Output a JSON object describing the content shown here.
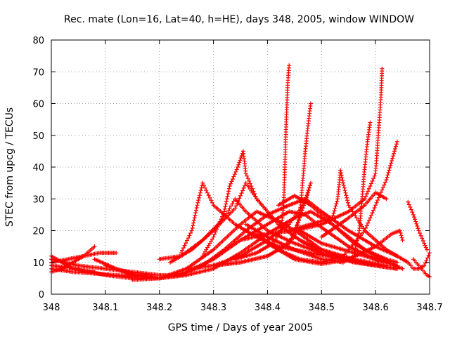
{
  "chart_data": {
    "type": "scatter",
    "title": "Rec. mate (Lon=16, Lat=40, h=HE), days 348, 2005, window WINDOW",
    "xlabel": "GPS time / Days of year 2005",
    "ylabel": "STEC from upcg / TECUs",
    "xlim": [
      348,
      348.7
    ],
    "ylim": [
      0,
      80
    ],
    "x_ticks": [
      "348",
      "348.1",
      "348.2",
      "348.3",
      "348.4",
      "348.5",
      "348.6",
      "348.7"
    ],
    "y_ticks": [
      "0",
      "10",
      "20",
      "30",
      "40",
      "50",
      "60",
      "70",
      "80"
    ],
    "x_tick_values": [
      348,
      348.1,
      348.2,
      348.3,
      348.4,
      348.5,
      348.6,
      348.7
    ],
    "y_tick_values": [
      0,
      10,
      20,
      30,
      40,
      50,
      60,
      70,
      80
    ],
    "grid": true,
    "marker": "+",
    "marker_color": "#ff0000",
    "series": [
      {
        "points": [
          [
            348.0,
            12
          ],
          [
            348.02,
            10
          ],
          [
            348.04,
            8
          ],
          [
            348.06,
            7
          ],
          [
            348.08,
            7
          ]
        ]
      },
      {
        "points": [
          [
            348.0,
            7
          ],
          [
            348.02,
            8
          ],
          [
            348.04,
            10
          ],
          [
            348.06,
            12
          ],
          [
            348.08,
            15
          ]
        ]
      },
      {
        "points": [
          [
            348.0,
            10
          ],
          [
            348.03,
            11
          ],
          [
            348.06,
            12
          ],
          [
            348.09,
            13
          ],
          [
            348.12,
            13
          ]
        ]
      },
      {
        "points": [
          [
            348.0,
            8
          ],
          [
            348.04,
            7
          ],
          [
            348.08,
            6.5
          ],
          [
            348.12,
            6
          ],
          [
            348.16,
            5.5
          ]
        ]
      },
      {
        "points": [
          [
            348.0,
            11
          ],
          [
            348.05,
            9
          ],
          [
            348.1,
            8
          ],
          [
            348.15,
            7
          ],
          [
            348.2,
            6
          ],
          [
            348.25,
            6
          ]
        ]
      },
      {
        "points": [
          [
            348.0,
            9
          ],
          [
            348.05,
            8
          ],
          [
            348.1,
            6
          ],
          [
            348.15,
            5
          ],
          [
            348.2,
            5
          ],
          [
            348.25,
            6
          ],
          [
            348.3,
            8
          ],
          [
            348.35,
            13
          ],
          [
            348.4,
            19
          ],
          [
            348.45,
            24
          ],
          [
            348.48,
            26
          ],
          [
            348.52,
            22
          ],
          [
            348.58,
            14
          ],
          [
            348.62,
            11
          ],
          [
            348.64,
            10
          ]
        ]
      },
      {
        "points": [
          [
            348.08,
            11
          ],
          [
            348.12,
            8
          ],
          [
            348.16,
            6
          ],
          [
            348.2,
            5
          ],
          [
            348.24,
            6
          ],
          [
            348.28,
            9
          ],
          [
            348.32,
            14
          ],
          [
            348.36,
            20
          ],
          [
            348.4,
            25
          ],
          [
            348.44,
            28
          ],
          [
            348.47,
            30
          ],
          [
            348.5,
            26
          ],
          [
            348.55,
            20
          ],
          [
            348.6,
            15
          ],
          [
            348.64,
            12
          ]
        ]
      },
      {
        "points": [
          [
            348.1,
            9
          ],
          [
            348.15,
            6
          ],
          [
            348.2,
            5
          ],
          [
            348.25,
            7
          ],
          [
            348.3,
            11
          ],
          [
            348.35,
            17
          ],
          [
            348.4,
            22
          ],
          [
            348.44,
            26
          ],
          [
            348.47,
            25
          ],
          [
            348.5,
            21
          ],
          [
            348.55,
            15
          ],
          [
            348.6,
            11
          ],
          [
            348.64,
            9
          ]
        ]
      },
      {
        "points": [
          [
            348.15,
            4.5
          ],
          [
            348.2,
            5
          ],
          [
            348.25,
            8
          ],
          [
            348.3,
            14
          ],
          [
            348.35,
            22
          ],
          [
            348.38,
            26
          ],
          [
            348.42,
            23
          ],
          [
            348.46,
            19
          ],
          [
            348.5,
            14
          ],
          [
            348.55,
            11
          ],
          [
            348.6,
            9
          ],
          [
            348.64,
            8
          ]
        ]
      },
      {
        "points": [
          [
            348.2,
            11
          ],
          [
            348.24,
            12
          ],
          [
            348.28,
            17
          ],
          [
            348.32,
            24
          ],
          [
            348.34,
            30
          ],
          [
            348.36,
            26
          ],
          [
            348.4,
            20
          ],
          [
            348.45,
            16
          ],
          [
            348.5,
            13
          ],
          [
            348.55,
            11
          ],
          [
            348.6,
            9
          ],
          [
            348.64,
            8
          ]
        ]
      },
      {
        "points": [
          [
            348.22,
            10
          ],
          [
            348.26,
            14
          ],
          [
            348.3,
            20
          ],
          [
            348.34,
            27
          ],
          [
            348.36,
            35
          ],
          [
            348.38,
            30
          ],
          [
            348.42,
            22
          ],
          [
            348.46,
            17
          ],
          [
            348.5,
            14
          ],
          [
            348.56,
            11
          ],
          [
            348.62,
            9
          ]
        ]
      },
      {
        "points": [
          [
            348.24,
            13
          ],
          [
            348.26,
            20
          ],
          [
            348.27,
            28
          ],
          [
            348.28,
            35
          ],
          [
            348.3,
            28
          ],
          [
            348.34,
            22
          ],
          [
            348.38,
            18
          ],
          [
            348.42,
            15
          ],
          [
            348.48,
            13
          ],
          [
            348.54,
            11
          ],
          [
            348.6,
            9
          ],
          [
            348.64,
            8
          ]
        ]
      },
      {
        "points": [
          [
            348.28,
            12
          ],
          [
            348.3,
            18
          ],
          [
            348.32,
            26
          ],
          [
            348.33,
            34
          ],
          [
            348.345,
            40
          ],
          [
            348.355,
            45
          ],
          [
            348.36,
            38
          ],
          [
            348.38,
            30
          ],
          [
            348.42,
            22
          ],
          [
            348.46,
            17
          ],
          [
            348.5,
            13
          ],
          [
            348.56,
            10
          ],
          [
            348.64,
            8
          ]
        ]
      },
      {
        "points": [
          [
            348.25,
            8
          ],
          [
            348.3,
            9
          ],
          [
            348.35,
            12
          ],
          [
            348.4,
            17
          ],
          [
            348.44,
            22
          ],
          [
            348.47,
            29
          ],
          [
            348.48,
            35
          ],
          [
            348.46,
            24
          ],
          [
            348.44,
            16
          ],
          [
            348.4,
            12
          ],
          [
            348.35,
            10
          ],
          [
            348.3,
            9
          ]
        ]
      },
      {
        "points": [
          [
            348.3,
            9
          ],
          [
            348.35,
            10
          ],
          [
            348.4,
            12
          ],
          [
            348.43,
            15
          ],
          [
            348.45,
            18
          ],
          [
            348.46,
            25
          ],
          [
            348.465,
            35
          ],
          [
            348.47,
            45
          ],
          [
            348.475,
            53
          ],
          [
            348.48,
            60
          ]
        ]
      },
      {
        "points": [
          [
            348.34,
            11
          ],
          [
            348.38,
            13
          ],
          [
            348.41,
            16
          ],
          [
            348.425,
            20
          ],
          [
            348.43,
            28
          ],
          [
            348.432,
            40
          ],
          [
            348.435,
            55
          ],
          [
            348.437,
            65
          ],
          [
            348.44,
            72
          ]
        ]
      },
      {
        "points": [
          [
            348.35,
            17
          ],
          [
            348.4,
            19
          ],
          [
            348.45,
            20
          ],
          [
            348.5,
            22
          ],
          [
            348.55,
            26
          ],
          [
            348.58,
            30
          ],
          [
            348.6,
            38
          ],
          [
            348.605,
            50
          ],
          [
            348.61,
            62
          ],
          [
            348.612,
            71
          ]
        ]
      },
      {
        "points": [
          [
            348.36,
            22
          ],
          [
            348.4,
            18
          ],
          [
            348.45,
            14
          ],
          [
            348.5,
            11
          ],
          [
            348.54,
            10
          ],
          [
            348.56,
            12
          ],
          [
            348.57,
            20
          ],
          [
            348.575,
            30
          ],
          [
            348.58,
            40
          ],
          [
            348.585,
            48
          ],
          [
            348.59,
            54
          ]
        ]
      },
      {
        "points": [
          [
            348.38,
            19
          ],
          [
            348.42,
            14
          ],
          [
            348.46,
            11
          ],
          [
            348.5,
            10
          ],
          [
            348.54,
            12
          ],
          [
            348.58,
            20
          ],
          [
            348.6,
            28
          ],
          [
            348.62,
            36
          ],
          [
            348.63,
            42
          ],
          [
            348.64,
            48
          ]
        ]
      },
      {
        "points": [
          [
            348.4,
            16
          ],
          [
            348.45,
            11
          ],
          [
            348.5,
            9.5
          ],
          [
            348.55,
            11
          ],
          [
            348.6,
            15
          ],
          [
            348.63,
            19
          ],
          [
            348.645,
            20
          ],
          [
            348.65,
            17
          ]
        ]
      },
      {
        "points": [
          [
            348.44,
            20
          ],
          [
            348.48,
            22
          ],
          [
            348.52,
            24
          ],
          [
            348.53,
            30
          ],
          [
            348.535,
            39
          ],
          [
            348.54,
            35
          ],
          [
            348.55,
            28
          ],
          [
            348.58,
            20
          ],
          [
            348.62,
            14
          ],
          [
            348.66,
            10
          ]
        ]
      },
      {
        "points": [
          [
            348.42,
            28
          ],
          [
            348.45,
            31
          ],
          [
            348.48,
            28
          ],
          [
            348.52,
            22
          ],
          [
            348.56,
            16
          ],
          [
            348.6,
            12
          ],
          [
            348.64,
            9
          ]
        ]
      },
      {
        "points": [
          [
            348.46,
            20
          ],
          [
            348.5,
            16
          ],
          [
            348.54,
            14
          ],
          [
            348.58,
            12
          ],
          [
            348.62,
            10
          ],
          [
            348.65,
            8
          ]
        ]
      },
      {
        "points": [
          [
            348.5,
            18
          ],
          [
            348.55,
            24
          ],
          [
            348.58,
            28
          ],
          [
            348.6,
            32
          ],
          [
            348.62,
            30
          ]
        ]
      },
      {
        "points": [
          [
            348.66,
            29
          ],
          [
            348.67,
            25
          ],
          [
            348.68,
            20
          ],
          [
            348.69,
            16
          ],
          [
            348.695,
            14
          ]
        ]
      },
      {
        "points": [
          [
            348.67,
            11
          ],
          [
            348.68,
            9
          ],
          [
            348.69,
            7
          ],
          [
            348.695,
            6
          ],
          [
            348.7,
            5.5
          ]
        ]
      },
      {
        "points": [
          [
            348.66,
            10
          ],
          [
            348.67,
            8
          ],
          [
            348.68,
            8
          ],
          [
            348.69,
            9
          ],
          [
            348.7,
            13
          ]
        ]
      }
    ]
  }
}
